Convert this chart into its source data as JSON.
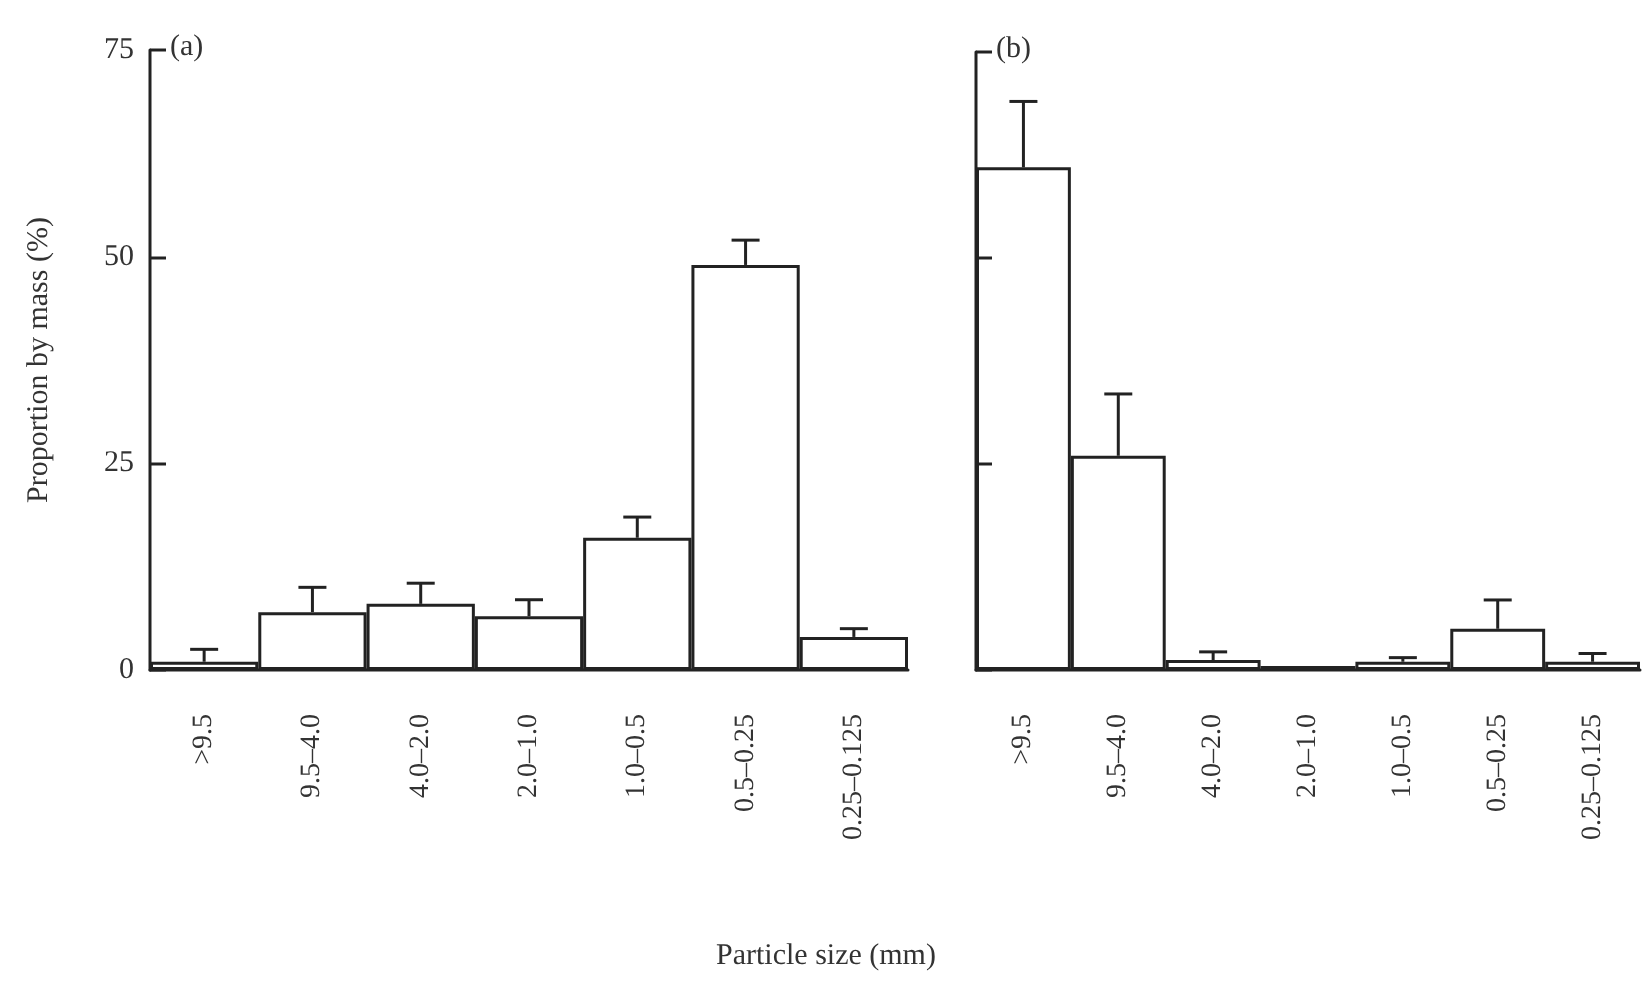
{
  "chart_data": [
    {
      "type": "bar",
      "annotations": [
        "(a)"
      ],
      "ylabel": "Proportion by mass (%)",
      "xlabel": "Particle size (mm)",
      "categories": [
        ">9.5",
        "9.5–4.0",
        "4.0–2.0",
        "2.0–1.0",
        "1.0–0.5",
        "0.5–0.25",
        "0.25–0.125"
      ],
      "series": [
        {
          "color": "#ffffff",
          "values": [
            1,
            7,
            8,
            6.5,
            16,
            49,
            4
          ],
          "errors": [
            [
              1,
              2.5
            ],
            [
              7,
              10
            ],
            [
              8,
              10.5
            ],
            [
              6.5,
              8.5
            ],
            [
              16,
              18.5
            ],
            [
              49,
              52
            ],
            [
              4,
              5
            ]
          ]
        }
      ],
      "ylim": [
        0,
        75
      ],
      "yticks": [
        0,
        25,
        50,
        75
      ],
      "grid": false
    },
    {
      "type": "bar",
      "annotations": [
        "(b)"
      ],
      "categories": [
        ">9.5",
        "9.5–4.0",
        "4.0–2.0",
        "2.0–1.0",
        "1.0–0.5",
        "0.5–0.25",
        "0.25–0.125"
      ],
      "series": [
        {
          "color": "#ffffff",
          "values": [
            61,
            26,
            1.2,
            0.5,
            1,
            5,
            1
          ],
          "errors": [
            [
              61,
              69
            ],
            [
              26,
              33.5
            ],
            [
              1.2,
              2.2
            ],
            null,
            [
              1,
              1.5
            ],
            [
              5,
              8.5
            ],
            [
              1,
              2
            ]
          ]
        }
      ],
      "ylim": [
        0,
        75
      ],
      "yticks": [
        {
          "value": 0,
          "label": null
        },
        {
          "value": 25,
          "label": null
        },
        {
          "value": 50,
          "label": null
        },
        {
          "value": 75,
          "label": null
        }
      ],
      "tick_labels": "x",
      "grid": false
    }
  ]
}
